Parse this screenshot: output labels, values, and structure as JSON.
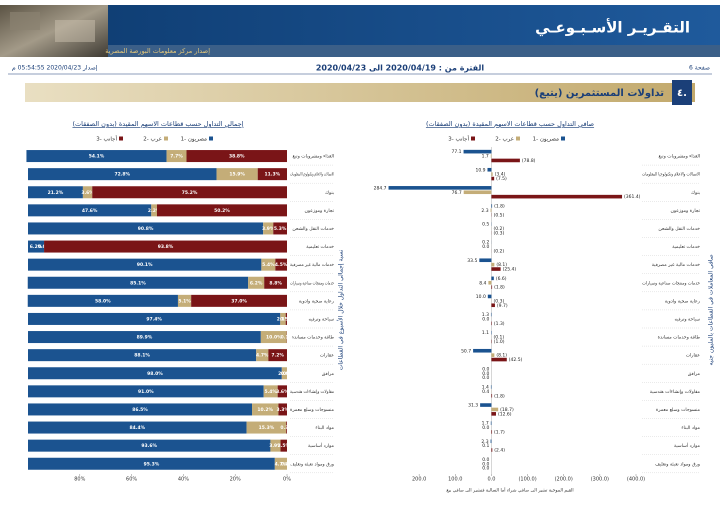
{
  "header": {
    "title": "التقـريـر الأسـبـوعـي",
    "publisher": "إصدار مركز معلومات البورصة المصرية",
    "page": "صفحة 6",
    "period": "الفترة من : 2020/04/19 الى 2020/04/23",
    "issued": "إصدار 2020/04/23 05:54:55 م"
  },
  "section": {
    "number": "٤.",
    "title": "تداولات المستثمرين (يتبع)"
  },
  "chart_data": [
    {
      "type": "stacked_bar_h",
      "title": "إجمالي التداول حسب قطاعات الاسهم المقيدة (بدون الصفقات)",
      "y_label": "نسبة إجمالي التداول خلال الأسبوع في القطاعات",
      "categories": [
        "الغذاء ومشروبات وتبغ",
        "الاتصالات والاعلام وتكنولوجيا المعلومات",
        "بنوك",
        "تجارة وموزعون",
        "خدمات النقل والشحن",
        "خدمات تعليمية",
        "خدمات مالية غير مصرفية",
        "خدمات ومنتجات صناعية وسيارات",
        "رعاية صحية وادوية",
        "سياحة وترفيه",
        "طاقة وخدمات مساندة",
        "عقارات",
        "مرافق",
        "مقاولات وإنشاءات هندسية",
        "منسوجات وسلع معمرة",
        "مواد البناء",
        "موارد أساسية",
        "ورق ومواد تعبئة وتغليف"
      ],
      "series": [
        {
          "name": "مصريون -1",
          "color": "#1b5390",
          "values": [
            54.1,
            72.8,
            21.2,
            47.6,
            90.8,
            6.2,
            90.1,
            85.1,
            58.0,
            97.4,
            89.9,
            88.1,
            98.0,
            91.0,
            86.5,
            84.4,
            93.6,
            95.3
          ],
          "value_labels": [
            "54.1%",
            "72.8%",
            "21.2%",
            "47.6%",
            "90.8%",
            "6.2%",
            "90.1%",
            "85.1%",
            "58.0%",
            "97.4%",
            "89.9%",
            "88.1%",
            "98.0%",
            "91.0%",
            "86.5%",
            "84.4%",
            "93.6%",
            "95.3%"
          ]
        },
        {
          "name": "عرب -2",
          "color": "#c4ad78",
          "values": [
            7.7,
            15.9,
            3.6,
            2.2,
            3.9,
            0.0,
            5.4,
            6.2,
            5.1,
            2.1,
            10.0,
            4.7,
            2.0,
            5.4,
            10.2,
            15.3,
            3.9,
            4.7
          ],
          "value_labels": [
            "7.7%",
            "15.9%",
            "3.6%",
            "2.2%",
            "3.9%",
            "0.0%",
            "5.4%",
            "6.2%",
            "5.1%",
            "2.1%",
            "10.0%",
            "4.7%",
            "2.0%",
            "5.4%",
            "10.2%",
            "15.3%",
            "3.9%",
            "4.7%"
          ]
        },
        {
          "name": "أجانب -3",
          "color": "#7a1517",
          "values": [
            38.8,
            11.3,
            75.2,
            50.2,
            5.3,
            93.8,
            4.5,
            8.8,
            37.0,
            0.5,
            0.1,
            7.2,
            0.0,
            3.6,
            3.3,
            0.3,
            2.5,
            0.0
          ],
          "value_labels": [
            "38.8%",
            "11.3%",
            "75.2%",
            "50.2%",
            "5.3%",
            "93.8%",
            "4.5%",
            "8.8%",
            "37.0%",
            "0.5%",
            "0.1%",
            "7.2%",
            "0.0%",
            "3.6%",
            "3.3%",
            "0.3%",
            "2.5%",
            "0.0%"
          ]
        }
      ],
      "xlim": [
        100,
        0
      ],
      "xticks": [
        {
          "value": 80,
          "label": "80%"
        },
        {
          "value": 60,
          "label": "60%"
        },
        {
          "value": 40,
          "label": "40%"
        },
        {
          "value": 20,
          "label": "20%"
        },
        {
          "value": 0,
          "label": "0%"
        }
      ]
    },
    {
      "type": "grouped_bar_h",
      "title": "صافي التداول حسب قطاعات الاسهم المقيدة (بدون الصفقات)",
      "y_label": "صافي المعاملات في القطاعات بالمليون جنيه",
      "note": "القيم الموجبة تشير الى صافي شراء أما السالبة فتشير الى صافي بيع",
      "categories": [
        "الغذاء ومشروبات وتبغ",
        "الاتصالات والاعلام وتكنولوجيا المعلومات",
        "بنوك",
        "تجارة وموزعون",
        "خدمات النقل والشحن",
        "خدمات تعليمية",
        "خدمات مالية غير مصرفية",
        "خدمات ومنتجات صناعية وسيارات",
        "رعاية صحية وادوية",
        "سياحة وترفيه",
        "طاقة وخدمات مساندة",
        "عقارات",
        "مرافق",
        "مقاولات وإنشاءات هندسية",
        "منسوجات وسلع معمرة",
        "مواد البناء",
        "موارد أساسية",
        "ورق ومواد تعبئة وتغليف"
      ],
      "series": [
        {
          "name": "مصريون -1",
          "color": "#1b5390",
          "values": [
            77.1,
            10.9,
            284.7,
            -1.8,
            0.5,
            0.2,
            33.5,
            -6.6,
            10.0,
            1.3,
            1.1,
            50.7,
            0.0,
            1.4,
            31.3,
            1.7,
            2.3,
            0.0
          ],
          "value_labels": [
            "77.1",
            "10.9",
            "284.7",
            "(1.8)",
            "0.5",
            "0.2",
            "33.5",
            "(6.6)",
            "10.0",
            "1.3",
            "1.1",
            "50.7",
            "0.0",
            "1.4",
            "31.3",
            "1.7",
            "2.3",
            "0.0"
          ]
        },
        {
          "name": "عرب -2",
          "color": "#c4ad78",
          "values": [
            1.7,
            -3.4,
            76.7,
            2.3,
            -0.2,
            0.0,
            -8.1,
            8.4,
            -0.3,
            0.0,
            -0.1,
            -8.1,
            0.0,
            0.4,
            -18.7,
            0.0,
            0.1,
            0.0
          ],
          "value_labels": [
            "1.7",
            "(3.4)",
            "76.7",
            "2.3",
            "(0.2)",
            "0.0",
            "(8.1)",
            "8.4",
            "(0.3)",
            "0.0",
            "(0.1)",
            "(8.1)",
            "0.0",
            "0.4",
            "(18.7)",
            "0.0",
            "0.1",
            "0.0"
          ]
        },
        {
          "name": "أجانب -3",
          "color": "#7a1517",
          "values": [
            -78.8,
            -7.5,
            -361.4,
            -0.5,
            -0.3,
            -0.2,
            -25.4,
            -1.8,
            -9.7,
            -1.3,
            -1.0,
            -42.5,
            0.0,
            -1.8,
            -12.6,
            -1.7,
            -2.4,
            0.0
          ],
          "value_labels": [
            "(78.8)",
            "(7.5)",
            "(361.4)",
            "(0.5)",
            "(0.3)",
            "(0.2)",
            "(25.4)",
            "(1.8)",
            "(9.7)",
            "(1.3)",
            "(1.0)",
            "(42.5)",
            "0.0",
            "(1.8)",
            "(12.6)",
            "(1.7)",
            "(2.4)",
            "0.0"
          ]
        }
      ],
      "xlim": [
        300,
        -400
      ],
      "xticks": [
        {
          "value": 200,
          "label": "200.0"
        },
        {
          "value": 100,
          "label": "100.0"
        },
        {
          "value": 0,
          "label": "0.0"
        },
        {
          "value": -100,
          "label": "(100.0)"
        },
        {
          "value": -200,
          "label": "(200.0)"
        },
        {
          "value": -300,
          "label": "(300.0)"
        },
        {
          "value": -400,
          "label": "(400.0)"
        }
      ]
    }
  ]
}
